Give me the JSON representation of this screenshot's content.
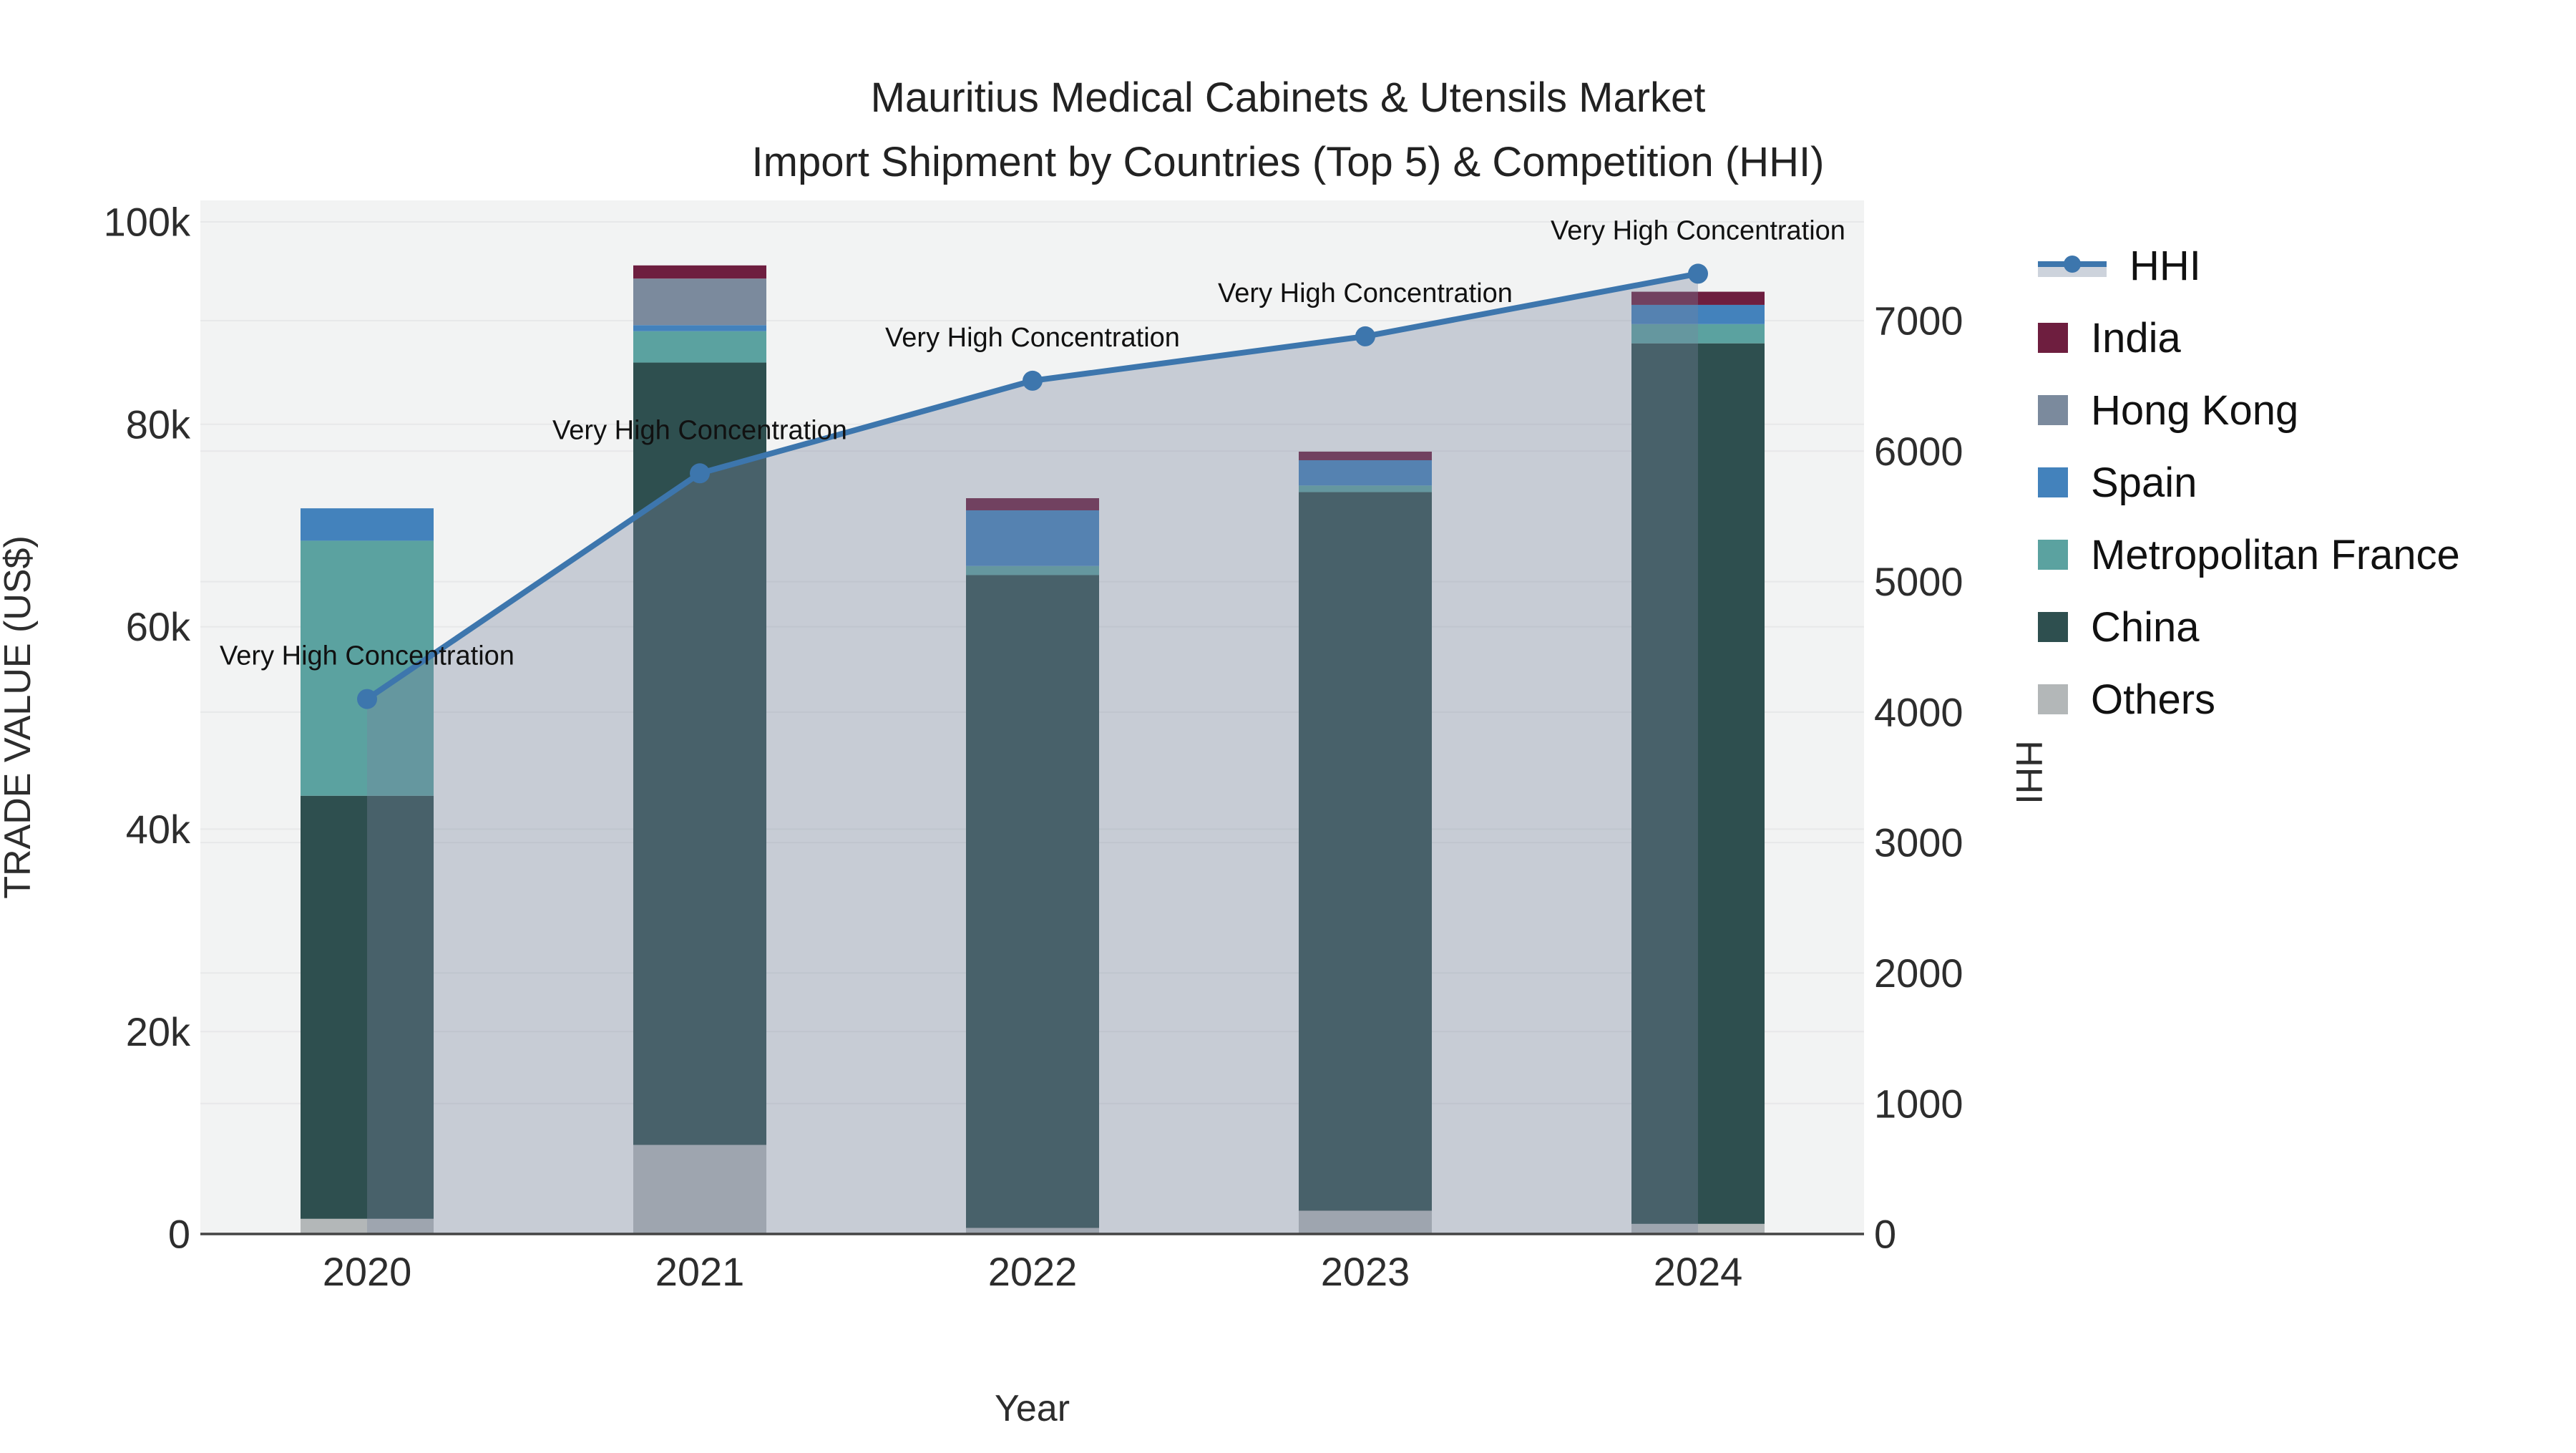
{
  "title": {
    "line1": "Mauritius Medical Cabinets & Utensils Market",
    "line2": "Import Shipment by Countries (Top 5) & Competition (HHI)"
  },
  "legend": {
    "items": [
      {
        "label": "HHI",
        "type": "line",
        "color": "#3d76ad",
        "fill": "#cdd3dc"
      },
      {
        "label": "India",
        "type": "swatch",
        "color": "#6e1e3f"
      },
      {
        "label": "Hong Kong",
        "type": "swatch",
        "color": "#7b8a9d"
      },
      {
        "label": "Spain",
        "type": "swatch",
        "color": "#4382bc"
      },
      {
        "label": "Metropolitan France",
        "type": "swatch",
        "color": "#5ba2a0"
      },
      {
        "label": "China",
        "type": "swatch",
        "color": "#2e4f4f"
      },
      {
        "label": "Others",
        "type": "swatch",
        "color": "#b3b7b8"
      }
    ]
  },
  "chart_data": {
    "type": "bar",
    "title": "Mauritius Medical Cabinets & Utensils Market Import Shipment by Countries (Top 5) & Competition (HHI)",
    "categories": [
      "2020",
      "2021",
      "2022",
      "2023",
      "2024"
    ],
    "stack_order_note": "series listed bottom-to-top of the stack",
    "series": [
      {
        "name": "Others",
        "color": "#b3b7b8",
        "values": [
          1500,
          8800,
          600,
          2300,
          1000
        ]
      },
      {
        "name": "China",
        "color": "#2e4f4f",
        "values": [
          41800,
          77300,
          64500,
          71000,
          87000
        ]
      },
      {
        "name": "Metropolitan France",
        "color": "#5ba2a0",
        "values": [
          25200,
          3100,
          900,
          650,
          1900
        ]
      },
      {
        "name": "Spain",
        "color": "#4382bc",
        "values": [
          3200,
          600,
          5500,
          2500,
          1900
        ]
      },
      {
        "name": "Hong Kong",
        "color": "#7b8a9d",
        "values": [
          0,
          4600,
          0,
          0,
          0
        ]
      },
      {
        "name": "India",
        "color": "#6e1e3f",
        "values": [
          0,
          1300,
          1200,
          850,
          1300
        ]
      }
    ],
    "hhi": {
      "name": "HHI",
      "type": "line",
      "values": [
        4100,
        5830,
        6540,
        6880,
        7360
      ],
      "line_color": "#3d76ad",
      "fill_color": "rgba(121,131,157,0.35)",
      "annotation": "Very High Concentration"
    },
    "xlabel": "Year",
    "y_left": {
      "label": "TRADE VALUE (US$)",
      "range": [
        0,
        100000
      ],
      "ticks": [
        {
          "label": "0",
          "value": 0
        },
        {
          "label": "20k",
          "value": 20000
        },
        {
          "label": "40k",
          "value": 40000
        },
        {
          "label": "60k",
          "value": 60000
        },
        {
          "label": "80k",
          "value": 80000
        },
        {
          "label": "100k",
          "value": 100000
        }
      ]
    },
    "y_right": {
      "label": "HHI",
      "range": [
        0,
        7000
      ],
      "ticks": [
        {
          "label": "0",
          "value": 0
        },
        {
          "label": "1000",
          "value": 1000
        },
        {
          "label": "2000",
          "value": 2000
        },
        {
          "label": "3000",
          "value": 3000
        },
        {
          "label": "4000",
          "value": 4000
        },
        {
          "label": "5000",
          "value": 5000
        },
        {
          "label": "6000",
          "value": 6000
        },
        {
          "label": "7000",
          "value": 7000
        }
      ]
    },
    "grid": true,
    "legend_position": "right",
    "plot_bg": "#f2f3f3",
    "gridline_color": "#e7e8e9",
    "axis_line_color": "#444444",
    "text_color": "#2d2d2d"
  }
}
